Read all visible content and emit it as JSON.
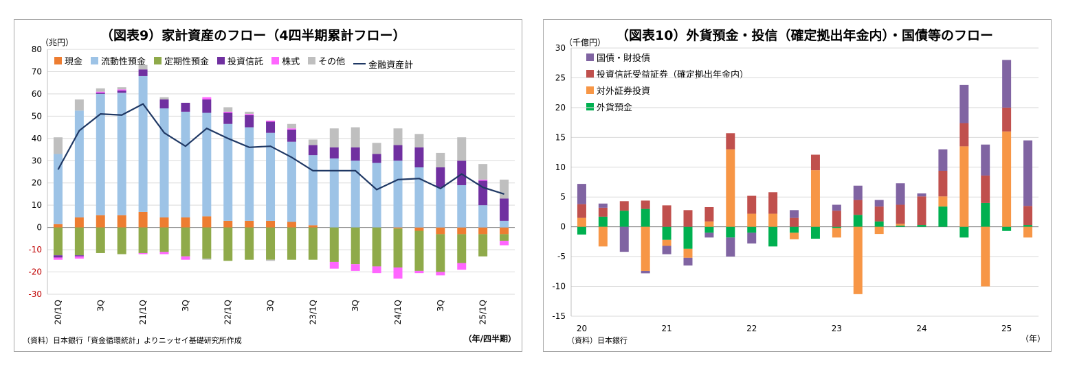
{
  "left": {
    "title": "（図表9）家計資産のフロー（4四半期累計フロー）",
    "unit_label": "（兆円）",
    "source": "（資料）日本銀行「資金循環統計」よりニッセイ基礎研究所作成",
    "x_unit": "（年/四半期）",
    "legend": [
      "現金",
      "流動性預金",
      "定期性預金",
      "投資信託",
      "株式",
      "その他",
      "金融資産計"
    ],
    "colors": {
      "現金": "#ed7d31",
      "流動性預金": "#9dc3e6",
      "定期性預金": "#8faa4a",
      "投資信託": "#7030a0",
      "株式": "#ff66ff",
      "その他": "#bfbfbf",
      "金融資産計": "#1f3864"
    }
  },
  "right": {
    "title": "（図表10）外貨預金・投信（確定拠出年金内）・国債等のフロー",
    "unit_label": "（千億円）",
    "source": "（資料）日本銀行",
    "x_unit": "（年）",
    "legend": [
      "国債・財投債",
      "投資信託受益証券（確定拠出年金内）",
      "対外証券投資",
      "外貨預金"
    ],
    "colors": {
      "国債・財投債": "#8064a2",
      "投資信託受益証券（確定拠出年金内）": "#c0504d",
      "対外証券投資": "#f79646",
      "外貨預金": "#00b050"
    }
  },
  "chart_data": [
    {
      "type": "bar",
      "stacked": true,
      "title": "（図表9）家計資産のフロー（4四半期累計フロー）",
      "ylabel": "（兆円）",
      "xlabel": "（年/四半期）",
      "ylim": [
        -30,
        80
      ],
      "yticks": [
        -30,
        -20,
        -10,
        0,
        10,
        20,
        30,
        40,
        50,
        60,
        70,
        80
      ],
      "categories": [
        "20/1Q",
        "20/2Q",
        "20/3Q",
        "20/4Q",
        "21/1Q",
        "21/2Q",
        "21/3Q",
        "21/4Q",
        "22/1Q",
        "22/2Q",
        "22/3Q",
        "22/4Q",
        "23/1Q",
        "23/2Q",
        "23/3Q",
        "23/4Q",
        "24/1Q",
        "24/2Q",
        "24/3Q",
        "24/4Q",
        "25/1Q",
        "25/2Q"
      ],
      "tick_labels": [
        "20/1Q",
        "",
        "3Q",
        "",
        "21/1Q",
        "",
        "3Q",
        "",
        "22/1Q",
        "",
        "3Q",
        "",
        "23/1Q",
        "",
        "3Q",
        "",
        "24/1Q",
        "",
        "3Q",
        "",
        "25/1Q",
        ""
      ],
      "series": [
        {
          "name": "現金",
          "values": [
            1.5,
            4.5,
            5.5,
            5.5,
            7,
            4.5,
            4.5,
            5,
            3,
            3,
            3,
            2.5,
            1,
            0,
            0,
            0,
            -0.5,
            -1.5,
            -3,
            -3,
            -3,
            -3
          ]
        },
        {
          "name": "流動性預金",
          "values": [
            31.5,
            48,
            54.5,
            55,
            61,
            49,
            47.5,
            46.5,
            43.5,
            42,
            39.5,
            36,
            31.5,
            31,
            30,
            29,
            30,
            27,
            18,
            19,
            10,
            3
          ]
        },
        {
          "name": "定期性預金",
          "values": [
            -12.5,
            -12.5,
            -11.5,
            -12,
            -11.5,
            -11,
            -13,
            -14,
            -15,
            -14.5,
            -14.5,
            -14.5,
            -14.5,
            -15.5,
            -16.5,
            -17.5,
            -17.5,
            -18,
            -17,
            -13,
            -10,
            -3
          ]
        },
        {
          "name": "投資信託",
          "values": [
            -1,
            -0.5,
            0.5,
            1,
            3,
            4,
            4,
            6,
            5,
            5.5,
            5,
            5.5,
            4.5,
            5,
            6,
            4,
            7,
            9,
            9,
            11,
            11,
            10
          ]
        },
        {
          "name": "株式",
          "values": [
            -1,
            -1,
            0.5,
            0.5,
            -0.5,
            -1,
            -1.5,
            1,
            0.5,
            0.5,
            0.5,
            0.5,
            0,
            -3,
            -3,
            -3,
            -5,
            -1,
            -1.5,
            -3,
            0.5,
            -2
          ]
        },
        {
          "name": "その他",
          "values": [
            7.5,
            5,
            1.5,
            1,
            2,
            1,
            0,
            -0.5,
            2,
            1,
            -0.5,
            2,
            2.5,
            8.5,
            9,
            5,
            7.5,
            6,
            6.5,
            10.5,
            7,
            8.5
          ]
        }
      ],
      "line": {
        "name": "金融資産計",
        "values": [
          26,
          43.5,
          51,
          50.5,
          55.5,
          42.5,
          36.5,
          44.5,
          40,
          36,
          36.5,
          31.5,
          25.5,
          25.5,
          25.5,
          17,
          21.5,
          22,
          17.5,
          24,
          18,
          15
        ]
      },
      "legend_position": "top"
    },
    {
      "type": "bar",
      "stacked": true,
      "title": "（図表10）外貨預金・投信（確定拠出年金内）・国債等のフロー",
      "ylabel": "（千億円）",
      "xlabel": "（年）",
      "ylim": [
        -15,
        30
      ],
      "yticks": [
        -15,
        -10,
        -5,
        0,
        5,
        10,
        15,
        20,
        25,
        30
      ],
      "categories": [
        "20/1Q",
        "20/2Q",
        "20/3Q",
        "20/4Q",
        "21/1Q",
        "21/2Q",
        "21/3Q",
        "21/4Q",
        "22/1Q",
        "22/2Q",
        "22/3Q",
        "22/4Q",
        "23/1Q",
        "23/2Q",
        "23/3Q",
        "23/4Q",
        "24/1Q",
        "24/2Q",
        "24/3Q",
        "24/4Q",
        "25/1Q",
        "25/2Q"
      ],
      "tick_labels": [
        "20",
        "",
        "",
        "",
        "21",
        "",
        "",
        "",
        "22",
        "",
        "",
        "",
        "23",
        "",
        "",
        "",
        "24",
        "",
        "",
        "",
        "25",
        ""
      ],
      "series": [
        {
          "name": "外貨預金",
          "values": [
            -1.3,
            1.7,
            2.7,
            3,
            -2.2,
            -3.7,
            -1,
            -1.8,
            -1,
            -3.3,
            -1,
            -2,
            -0.2,
            2,
            0.9,
            0.2,
            0.3,
            3.4,
            -1.8,
            4,
            -0.7,
            0.3
          ]
        },
        {
          "name": "対外証券投資",
          "values": [
            1.5,
            -3.3,
            0,
            -7.4,
            -1,
            -1.5,
            0.9,
            13,
            2.2,
            2.2,
            -1.1,
            9.5,
            -1.6,
            -11.3,
            -1.2,
            0.3,
            0,
            1.7,
            13.5,
            -10,
            16,
            -1.8
          ]
        },
        {
          "name": "投資信託受益証券（確定拠出年金内）",
          "values": [
            2.3,
            1.5,
            1.6,
            1.4,
            3.6,
            2.8,
            2.4,
            2.7,
            3,
            3.6,
            1.5,
            2.6,
            2.7,
            2.5,
            2.5,
            3.2,
            4.8,
            4.3,
            3.9,
            4.6,
            4,
            3.2
          ]
        },
        {
          "name": "国債・財投債",
          "values": [
            3.4,
            0.7,
            -4.2,
            -0.4,
            -1.4,
            -1.3,
            -0.8,
            -3.2,
            -1.8,
            0,
            1.3,
            0,
            1,
            2.4,
            1.1,
            3.6,
            0.5,
            3.6,
            6.4,
            5.2,
            8,
            11
          ]
        }
      ],
      "legend_position": "top-left"
    }
  ]
}
